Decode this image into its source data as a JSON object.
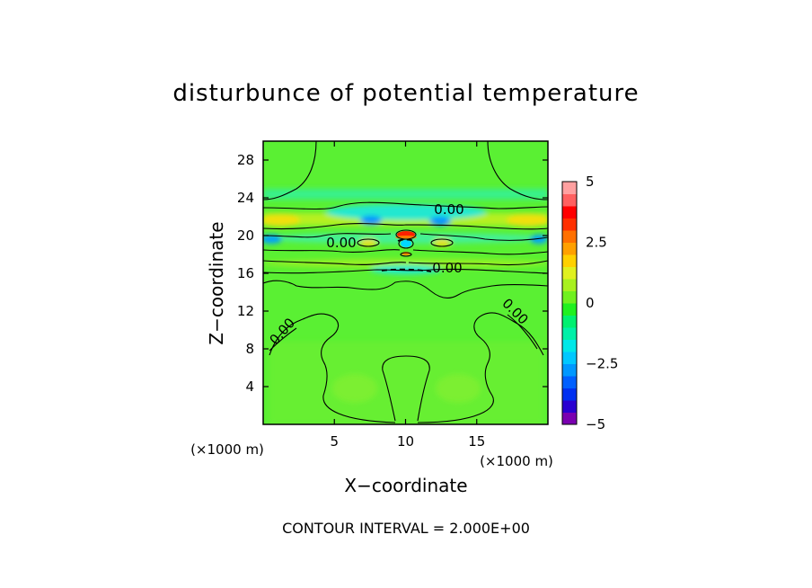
{
  "chart_data": {
    "type": "heatmap",
    "title": "disturbunce of potential temperature",
    "xlabel": "X−coordinate",
    "ylabel": "Z−coordinate",
    "x_unit_left": "(×1000 m)",
    "x_unit_right": "(×1000 m)",
    "footer": "CONTOUR INTERVAL = 2.000E+00",
    "xlim": [
      0,
      20
    ],
    "ylim": [
      0,
      30
    ],
    "xticks": [
      5,
      10,
      15
    ],
    "yticks": [
      4,
      8,
      12,
      16,
      20,
      24,
      28
    ],
    "contour_labels": [
      "0.00",
      "0.00",
      "0.00",
      "0.00",
      "0.00"
    ],
    "colorbar": {
      "range": [
        -5,
        5
      ],
      "tick_labels": [
        "5",
        "2.5",
        "0",
        "−2.5",
        "−5"
      ],
      "tick_values": [
        5,
        2.5,
        0,
        -2.5,
        -5
      ],
      "colors": [
        "#7a00b0",
        "#2a00d0",
        "#0030f0",
        "#0060ff",
        "#0098ff",
        "#00c8ff",
        "#00e8e8",
        "#00f0a8",
        "#00f070",
        "#20f020",
        "#70f020",
        "#a8f020",
        "#e0f020",
        "#ffd000",
        "#ffa000",
        "#ff7000",
        "#ff3000",
        "#ff0000",
        "#ff6060",
        "#ffa0a0"
      ]
    }
  }
}
